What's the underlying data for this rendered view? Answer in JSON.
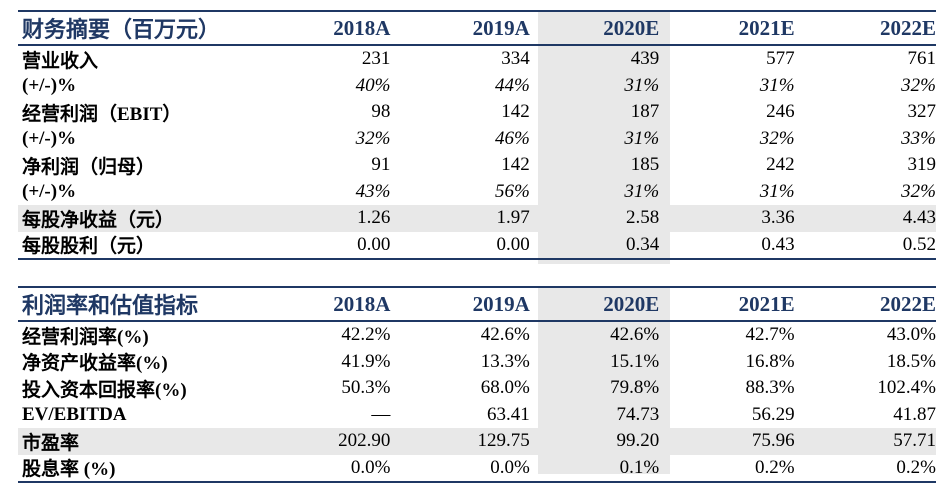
{
  "table1": {
    "title": "财务摘要（百万元）",
    "years": [
      "2018A",
      "2019A",
      "2020E",
      "2021E",
      "2022E"
    ],
    "rows": [
      {
        "label": "营业收入",
        "values": [
          "231",
          "334",
          "439",
          "577",
          "761"
        ]
      },
      {
        "label": "(+/-)%",
        "values": [
          "40%",
          "44%",
          "31%",
          "31%",
          "32%"
        ]
      },
      {
        "label": "经营利润（EBIT）",
        "values": [
          "98",
          "142",
          "187",
          "246",
          "327"
        ]
      },
      {
        "label": "(+/-)%",
        "values": [
          "32%",
          "46%",
          "31%",
          "32%",
          "33%"
        ]
      },
      {
        "label": "净利润（归母）",
        "values": [
          "91",
          "142",
          "185",
          "242",
          "319"
        ]
      },
      {
        "label": "(+/-)%",
        "values": [
          "43%",
          "56%",
          "31%",
          "31%",
          "32%"
        ]
      },
      {
        "label": "每股净收益（元）",
        "values": [
          "1.26",
          "1.97",
          "2.58",
          "3.36",
          "4.43"
        ]
      },
      {
        "label": "每股股利（元）",
        "values": [
          "0.00",
          "0.00",
          "0.34",
          "0.43",
          "0.52"
        ]
      }
    ]
  },
  "table2": {
    "title": "利润率和估值指标",
    "years": [
      "2018A",
      "2019A",
      "2020E",
      "2021E",
      "2022E"
    ],
    "rows": [
      {
        "label": "经营利润率(%)",
        "values": [
          "42.2%",
          "42.6%",
          "42.6%",
          "42.7%",
          "43.0%"
        ]
      },
      {
        "label": "净资产收益率(%)",
        "values": [
          "41.9%",
          "13.3%",
          "15.1%",
          "16.8%",
          "18.5%"
        ]
      },
      {
        "label": "投入资本回报率(%)",
        "values": [
          "50.3%",
          "68.0%",
          "79.8%",
          "88.3%",
          "102.4%"
        ]
      },
      {
        "label": "EV/EBITDA",
        "values": [
          "—",
          "63.41",
          "74.73",
          "56.29",
          "41.87"
        ]
      },
      {
        "label": "市盈率",
        "values": [
          "202.90",
          "129.75",
          "99.20",
          "75.96",
          "57.71"
        ]
      },
      {
        "label": "股息率 (%)",
        "values": [
          "0.0%",
          "0.0%",
          "0.1%",
          "0.2%",
          "0.2%"
        ]
      }
    ]
  }
}
